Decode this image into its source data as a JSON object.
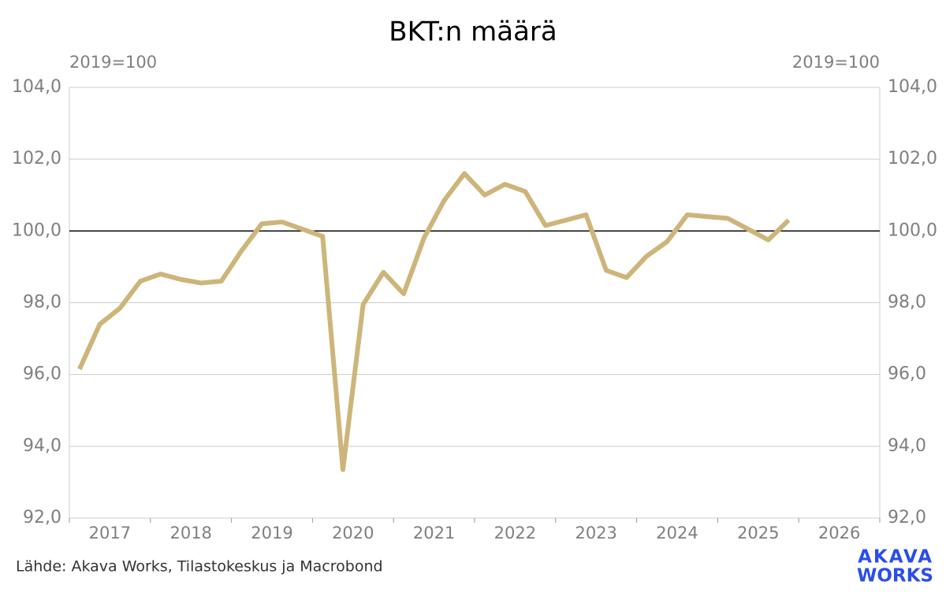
{
  "chart_data": {
    "type": "line",
    "title": "BKT:n määrä",
    "ylabel": "2019=100",
    "y2label": "2019=100",
    "source": "Lähde: Akava Works, Tilastokeskus ja Macrobond",
    "logo": [
      "AKAVA",
      "WORKS"
    ],
    "categories": [
      "2017",
      "2018",
      "2019",
      "2020",
      "2021",
      "2022",
      "2023",
      "2024",
      "2025",
      "2026"
    ],
    "x": [
      2017.125,
      2017.375,
      2017.625,
      2017.875,
      2018.125,
      2018.375,
      2018.625,
      2018.875,
      2019.125,
      2019.375,
      2019.625,
      2019.875,
      2020.125,
      2020.375,
      2020.625,
      2020.875,
      2021.125,
      2021.375,
      2021.625,
      2021.875,
      2022.125,
      2022.375,
      2022.625,
      2022.875,
      2023.125,
      2023.375,
      2023.625,
      2023.875,
      2024.125,
      2024.375,
      2024.625,
      2024.875,
      2025.125,
      2025.375,
      2025.625,
      2025.875
    ],
    "series": [
      {
        "name": "BKT",
        "color": "#cdb57a",
        "values": [
          96.15,
          97.4,
          97.85,
          98.6,
          98.8,
          98.65,
          98.55,
          98.6,
          99.45,
          100.2,
          100.25,
          100.05,
          99.85,
          93.35,
          97.95,
          98.85,
          98.25,
          99.8,
          100.85,
          101.6,
          101.0,
          101.3,
          101.1,
          100.15,
          100.3,
          100.45,
          98.9,
          98.7,
          99.3,
          99.7,
          100.45,
          100.4,
          100.35,
          100.05,
          99.75,
          100.3
        ]
      }
    ],
    "xlim": [
      2017,
      2027
    ],
    "xticks": [
      2017,
      2018,
      2019,
      2020,
      2021,
      2022,
      2023,
      2024,
      2025,
      2026,
      2027
    ],
    "ylim": [
      92,
      104
    ],
    "yticks": [
      {
        "value": 92,
        "label": "92,0"
      },
      {
        "value": 94,
        "label": "94,0"
      },
      {
        "value": 96,
        "label": "96,0"
      },
      {
        "value": 98,
        "label": "98,0"
      },
      {
        "value": 100,
        "label": "100,0"
      },
      {
        "value": 102,
        "label": "102,0"
      },
      {
        "value": 104,
        "label": "104,0"
      }
    ],
    "y2lim": [
      92,
      104
    ],
    "y2ticks": [
      {
        "value": 92,
        "label": "92,0"
      },
      {
        "value": 94,
        "label": "94,0"
      },
      {
        "value": 96,
        "label": "96,0"
      },
      {
        "value": 98,
        "label": "98,0"
      },
      {
        "value": 100,
        "label": "100,0"
      },
      {
        "value": 102,
        "label": "102,0"
      },
      {
        "value": 104,
        "label": "104,0"
      }
    ],
    "reference_line": 100,
    "grid": true
  }
}
